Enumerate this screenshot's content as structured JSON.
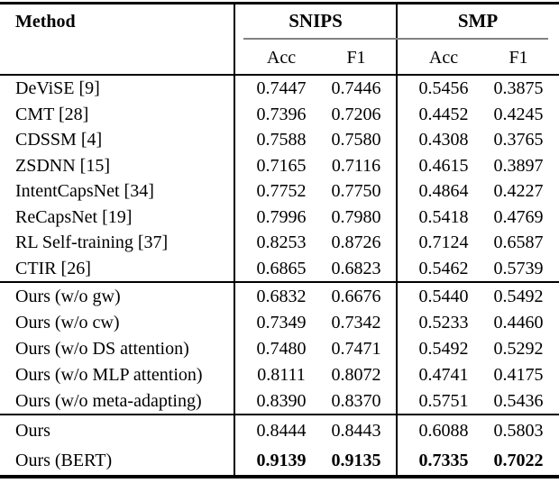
{
  "header": {
    "method": "Method",
    "group1": "SNIPS",
    "group2": "SMP",
    "sub_acc1": "Acc",
    "sub_f1_1": "F1",
    "sub_acc2": "Acc",
    "sub_f1_2": "F1"
  },
  "body": {
    "group1": [
      {
        "method": "DeViSE [9]",
        "v": [
          "0.7447",
          "0.7446",
          "0.5456",
          "0.3875"
        ]
      },
      {
        "method": "CMT [28]",
        "v": [
          "0.7396",
          "0.7206",
          "0.4452",
          "0.4245"
        ]
      },
      {
        "method": "CDSSM [4]",
        "v": [
          "0.7588",
          "0.7580",
          "0.4308",
          "0.3765"
        ]
      },
      {
        "method": "ZSDNN [15]",
        "v": [
          "0.7165",
          "0.7116",
          "0.4615",
          "0.3897"
        ]
      },
      {
        "method": "IntentCapsNet [34]",
        "v": [
          "0.7752",
          "0.7750",
          "0.4864",
          "0.4227"
        ]
      },
      {
        "method": "ReCapsNet [19]",
        "v": [
          "0.7996",
          "0.7980",
          "0.5418",
          "0.4769"
        ]
      },
      {
        "method": "RL Self-training [37]",
        "v": [
          "0.8253",
          "0.8726",
          "0.7124",
          "0.6587"
        ]
      },
      {
        "method": "CTIR [26]",
        "v": [
          "0.6865",
          "0.6823",
          "0.5462",
          "0.5739"
        ]
      }
    ],
    "group2": [
      {
        "method": "Ours (w/o gw)",
        "v": [
          "0.6832",
          "0.6676",
          "0.5440",
          "0.5492"
        ]
      },
      {
        "method": "Ours (w/o cw)",
        "v": [
          "0.7349",
          "0.7342",
          "0.5233",
          "0.4460"
        ]
      },
      {
        "method": "Ours (w/o DS attention)",
        "v": [
          "0.7480",
          "0.7471",
          "0.5492",
          "0.5292"
        ]
      },
      {
        "method": "Ours (w/o MLP attention)",
        "v": [
          "0.8111",
          "0.8072",
          "0.4741",
          "0.4175"
        ]
      },
      {
        "method": "Ours (w/o meta-adapting)",
        "v": [
          "0.8390",
          "0.8370",
          "0.5751",
          "0.5436"
        ]
      }
    ],
    "group3": [
      {
        "method": "Ours",
        "v": [
          "0.8444",
          "0.8443",
          "0.6088",
          "0.5803"
        ]
      },
      {
        "method": "Ours (BERT)",
        "v": [
          "0.9139",
          "0.9135",
          "0.7335",
          "0.7022"
        ]
      }
    ]
  },
  "colors": {
    "rule": "#000000",
    "cmidrule": "#828282",
    "text": "#000000",
    "background": "#ffffff"
  }
}
